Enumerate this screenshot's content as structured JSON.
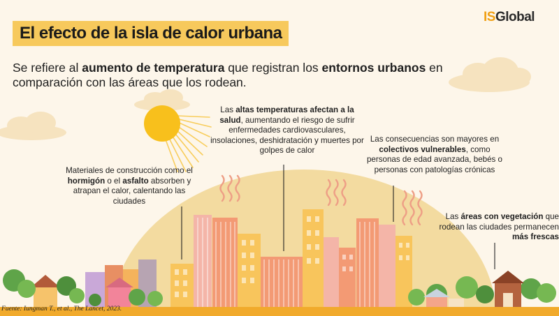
{
  "logo": {
    "part1": "IS",
    "part2": "Global"
  },
  "title": "El efecto de la isla de calor urbana",
  "intro": {
    "t1": "Se refiere al ",
    "b1": "aumento de temperatura",
    "t2": " que registran los ",
    "b2": "entornos urbanos",
    "t3": " en comparación con las áreas que los rodean."
  },
  "notes": {
    "materials": {
      "t1": "Materiales de construcción como el ",
      "b1": "hormigón",
      "t2": " o el ",
      "b2": "asfalto",
      "t3": " absorben y atrapan el calor, calentando las ciudades"
    },
    "health": {
      "t1": "Las ",
      "b1": "altas temperaturas afectan a la salud",
      "t2": ", aumentando el riesgo de sufrir enfermedades cardiovasculares, insolaciones, deshidratación y muertes por golpes de calor"
    },
    "vulnerable": {
      "t1": "Las consecuencias son mayores en ",
      "b1": "colectivos vulnerables",
      "t2": ", como personas de edad avanzada, bebés o personas con patologías crónicas"
    },
    "green": {
      "t1": "Las ",
      "b1": "áreas con vegetación",
      "t2": " que rodean las ciudades permanecen ",
      "b2": "más frescas"
    }
  },
  "source": "Fuente: Iungman T., et al., The Lancet, 2023.",
  "colors": {
    "background": "#fdf6ea",
    "title_highlight": "#f7c95c",
    "sun": "#f8c01c",
    "heat_dome": "#f3dba0",
    "ground": "#f1aa2c",
    "building_salmon": "#f39a74",
    "building_pink": "#f4b5a8",
    "building_yellow": "#f8c55c",
    "tree_green": "#5fa449",
    "logo_orange": "#f0a015"
  },
  "icons": [
    "sun-icon",
    "heat-wave-icon",
    "building-icon",
    "tree-icon",
    "house-icon",
    "cloud-icon",
    "barn-icon"
  ]
}
